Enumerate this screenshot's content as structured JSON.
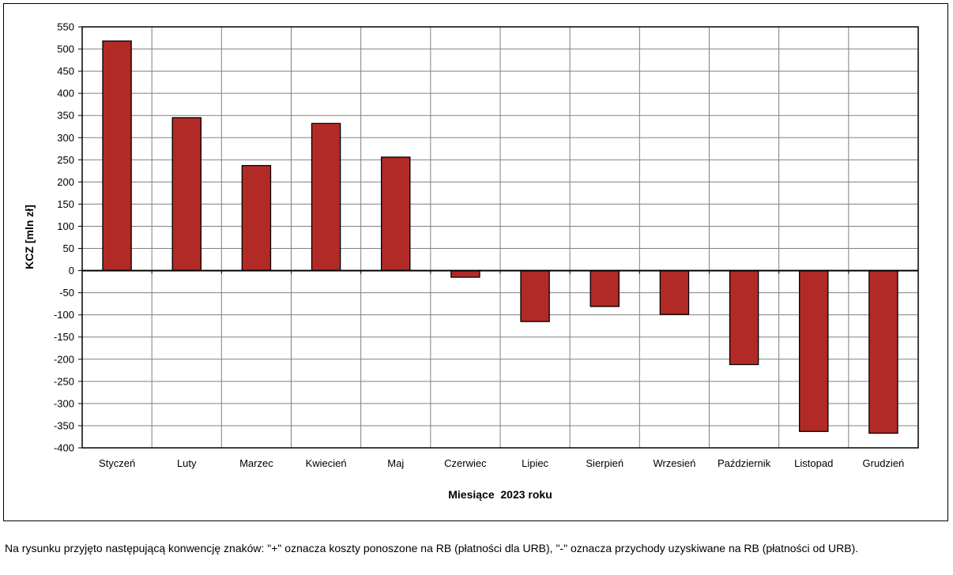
{
  "chart_data": {
    "type": "bar",
    "categories": [
      "Styczeń",
      "Luty",
      "Marzec",
      "Kwiecień",
      "Maj",
      "Czerwiec",
      "Lipiec",
      "Sierpień",
      "Wrzesień",
      "Październik",
      "Listopad",
      "Grudzień"
    ],
    "values": [
      518,
      345,
      237,
      332,
      256,
      -15,
      -115,
      -81,
      -99,
      -212,
      -363,
      -367
    ],
    "xlabel": "Miesiące  2023 roku",
    "ylabel": "KCZ [mln zł]",
    "ylim": [
      -400,
      550
    ],
    "yticks": [
      550,
      500,
      450,
      400,
      350,
      300,
      250,
      200,
      150,
      100,
      50,
      0,
      -50,
      -100,
      -150,
      -200,
      -250,
      -300,
      -350,
      -400
    ],
    "grid": true,
    "legend": "none",
    "bar_color": "#B22A26",
    "grid_color": "#808080"
  },
  "footnote": "Na rysunku przyjęto następującą konwencję znaków: \"+\" oznacza koszty ponoszone na RB (płatności dla URB), \"-\" oznacza przychody uzyskiwane na RB (płatności od URB)."
}
